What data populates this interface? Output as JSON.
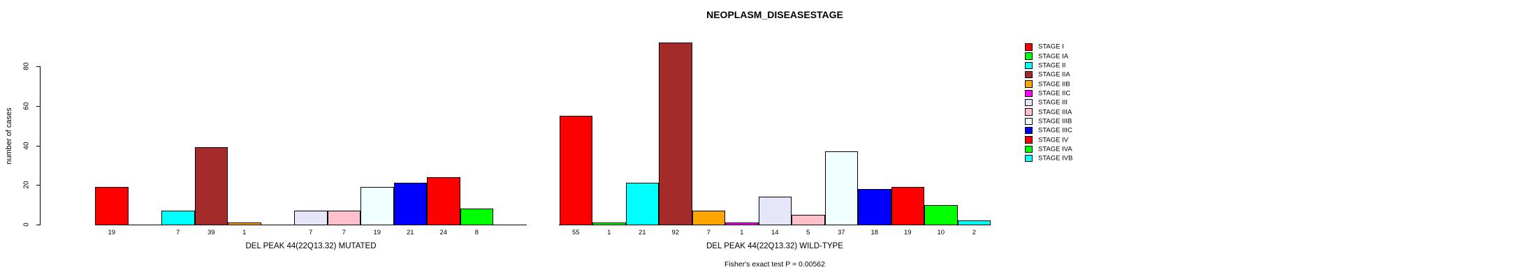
{
  "title": "NEOPLASM_DISEASESTAGE",
  "footer_note": "Fisher's exact test P = 0.00562",
  "y_axis": {
    "label": "number of cases",
    "ticks": [
      0,
      20,
      40,
      60,
      80
    ]
  },
  "legend": {
    "entries": [
      {
        "label": "STAGE I",
        "color": "#FF0000"
      },
      {
        "label": "STAGE IA",
        "color": "#00FF00"
      },
      {
        "label": "STAGE II",
        "color": "#00FFFF"
      },
      {
        "label": "STAGE IIA",
        "color": "#A52A2A"
      },
      {
        "label": "STAGE IIB",
        "color": "#FFA500"
      },
      {
        "label": "STAGE IIC",
        "color": "#FF00FF"
      },
      {
        "label": "STAGE III",
        "color": "#E6E6FA"
      },
      {
        "label": "STAGE IIIA",
        "color": "#FFC0CB"
      },
      {
        "label": "STAGE IIIB",
        "color": "#F0FFFF"
      },
      {
        "label": "STAGE IIIC",
        "color": "#0000FF"
      },
      {
        "label": "STAGE IV",
        "color": "#FF0000"
      },
      {
        "label": "STAGE IVA",
        "color": "#00FF00"
      },
      {
        "label": "STAGE IVB",
        "color": "#00FFFF"
      }
    ]
  },
  "chart_data": [
    {
      "type": "bar",
      "xlabel": "DEL PEAK 44(22Q13.32) MUTATED",
      "ylabel": "number of cases",
      "ylim": [
        0,
        80
      ],
      "categories": [
        "STAGE I",
        "STAGE IA",
        "STAGE II",
        "STAGE IIA",
        "STAGE IIB",
        "STAGE IIC",
        "STAGE III",
        "STAGE IIIA",
        "STAGE IIIB",
        "STAGE IIIC",
        "STAGE IV",
        "STAGE IVA",
        "STAGE IVB"
      ],
      "values": [
        19,
        0,
        7,
        39,
        1,
        0,
        7,
        7,
        19,
        21,
        24,
        8,
        0
      ],
      "colors": [
        "#FF0000",
        "#00FF00",
        "#00FFFF",
        "#A52A2A",
        "#FFA500",
        "#FF00FF",
        "#E6E6FA",
        "#FFC0CB",
        "#F0FFFF",
        "#0000FF",
        "#FF0000",
        "#00FF00",
        "#00FFFF"
      ],
      "show_zero_labels": false
    },
    {
      "type": "bar",
      "xlabel": "DEL PEAK 44(22Q13.32) WILD-TYPE",
      "ylabel": "number of cases",
      "ylim": [
        0,
        80
      ],
      "categories": [
        "STAGE I",
        "STAGE IA",
        "STAGE II",
        "STAGE IIA",
        "STAGE IIB",
        "STAGE IIC",
        "STAGE III",
        "STAGE IIIA",
        "STAGE IIIB",
        "STAGE IIIC",
        "STAGE IV",
        "STAGE IVA",
        "STAGE IVB"
      ],
      "values": [
        55,
        1,
        21,
        92,
        7,
        1,
        14,
        5,
        37,
        18,
        19,
        10,
        2
      ],
      "colors": [
        "#FF0000",
        "#00FF00",
        "#00FFFF",
        "#A52A2A",
        "#FFA500",
        "#FF00FF",
        "#E6E6FA",
        "#FFC0CB",
        "#F0FFFF",
        "#0000FF",
        "#FF0000",
        "#00FF00",
        "#00FFFF"
      ],
      "show_zero_labels": false
    }
  ]
}
